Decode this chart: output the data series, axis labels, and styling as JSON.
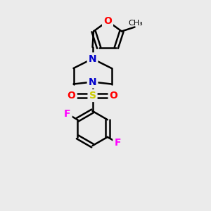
{
  "background_color": "#ebebeb",
  "bond_color": "#000000",
  "bond_width": 1.8,
  "atom_colors": {
    "O": "#ff0000",
    "N": "#0000cc",
    "S": "#cccc00",
    "F": "#ff00ff",
    "C": "#000000"
  },
  "font_size": 10,
  "fig_width": 3.0,
  "fig_height": 3.0
}
